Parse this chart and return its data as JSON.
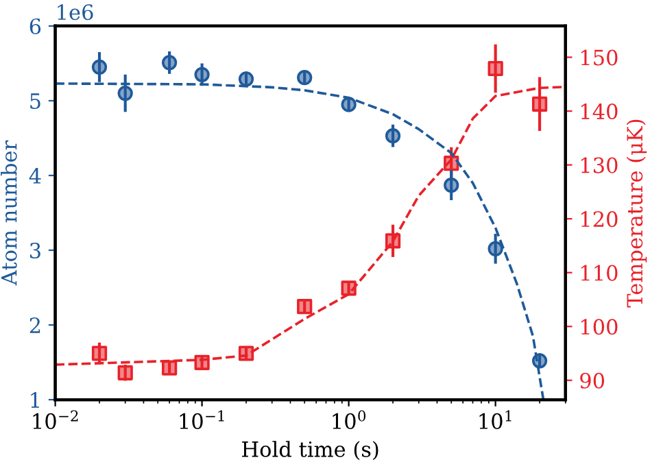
{
  "chart_data": {
    "type": "scatter",
    "xlabel": "Hold time (s)",
    "ylabel": "Atom number",
    "y2label": "Temperature (μK)",
    "log": "x",
    "grid": false,
    "legend": false,
    "xlim": [
      0.01,
      30
    ],
    "xticks": [
      {
        "value": 0.01,
        "label": "10$^{−2}$"
      },
      {
        "value": 0.1,
        "label": "10$^{−1}$"
      },
      {
        "value": 1,
        "label": "10$^{0}$"
      },
      {
        "value": 10,
        "label": "10$^{1}$"
      }
    ],
    "ylim": [
      1,
      6
    ],
    "yticks": [
      1,
      2,
      3,
      4,
      5,
      6
    ],
    "y2lim": [
      86.4,
      155.8
    ],
    "y2ticks": [
      90,
      100,
      110,
      120,
      130,
      140,
      150
    ],
    "annotations": [
      "1e6"
    ],
    "series": [
      {
        "type": "line",
        "color": "#1f5a9a",
        "line_style": "dashed",
        "marker": "none",
        "x": [
          0.01,
          0.1,
          0.3,
          0.5,
          1,
          2,
          3,
          5,
          7,
          10,
          14,
          18,
          21.2
        ],
        "values": [
          5.23,
          5.22,
          5.18,
          5.14,
          5.04,
          4.82,
          4.62,
          4.3,
          3.9,
          3.3,
          2.55,
          1.85,
          1.0
        ]
      },
      {
        "type": "line",
        "axis": "y2",
        "color": "#e8222a",
        "line_style": "dashed",
        "marker": "none",
        "x": [
          0.01,
          0.1,
          0.2,
          0.5,
          1,
          2,
          3,
          5,
          7,
          10,
          20,
          30
        ],
        "values": [
          92.9,
          93.8,
          94.6,
          101.4,
          106,
          115.8,
          124.3,
          131,
          138.6,
          142.8,
          144.3,
          144.5
        ]
      },
      {
        "color": "#1f5a9a",
        "marker": "circle",
        "x": [
          0.02,
          0.03,
          0.06,
          0.1,
          0.2,
          0.5,
          1,
          2,
          5,
          10,
          20
        ],
        "values": [
          5.45,
          5.1,
          5.51,
          5.35,
          5.29,
          5.31,
          4.95,
          4.53,
          3.87,
          3.02,
          1.52
        ],
        "errors": [
          0.2,
          0.25,
          0.15,
          0.15,
          0.1,
          0.1,
          0.1,
          0.15,
          0.2,
          0.2,
          0.1
        ]
      },
      {
        "axis": "y2",
        "color": "#e8222a",
        "marker": "square",
        "x": [
          0.02,
          0.03,
          0.06,
          0.1,
          0.2,
          0.5,
          1,
          2,
          5,
          10,
          20
        ],
        "values": [
          95.0,
          91.4,
          92.3,
          93.3,
          95.0,
          103.7,
          107.1,
          115.9,
          130.3,
          147.9,
          141.3
        ],
        "errors": [
          2,
          1.5,
          1,
          1,
          1,
          1,
          1,
          3,
          3,
          4.5,
          5
        ]
      }
    ]
  }
}
